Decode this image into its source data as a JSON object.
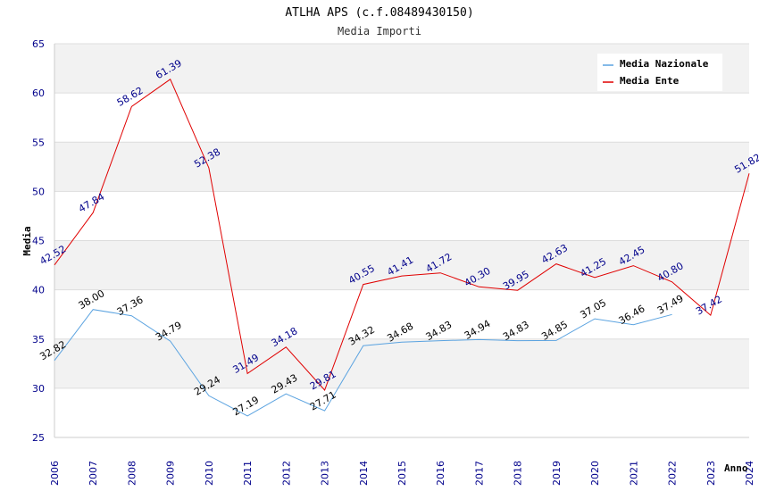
{
  "chart_data": {
    "type": "line",
    "title": "ATLHA APS (c.f.08489430150)",
    "subtitle": "Media Importi",
    "xlabel": "Anno",
    "ylabel": "Media",
    "ylim": [
      25,
      65
    ],
    "yticks": [
      "25",
      "30",
      "35",
      "40",
      "45",
      "50",
      "55",
      "60",
      "65"
    ],
    "categories": [
      "2006",
      "2007",
      "2008",
      "2009",
      "2010",
      "2011",
      "2012",
      "2013",
      "2014",
      "2015",
      "2016",
      "2017",
      "2018",
      "2019",
      "2020",
      "2021",
      "2022",
      "2023",
      "2024"
    ],
    "legend_position": "top-right",
    "series": [
      {
        "name": "Media Nazionale",
        "color": "#5ba3e0",
        "label_color": "#000000",
        "values": [
          32.82,
          38.0,
          37.36,
          34.79,
          29.24,
          27.19,
          29.43,
          27.71,
          34.32,
          34.68,
          34.83,
          34.94,
          34.83,
          34.85,
          37.05,
          36.46,
          37.49,
          null,
          null
        ],
        "labels": [
          "32.82",
          "38.00",
          "37.36",
          "34.79",
          "29.24",
          "27.19",
          "29.43",
          "27.71",
          "34.32",
          "34.68",
          "34.83",
          "34.94",
          "34.83",
          "34.85",
          "37.05",
          "36.46",
          "37.49",
          null,
          null
        ]
      },
      {
        "name": "Media Ente",
        "color": "#e00000",
        "label_color": "#00008b",
        "values": [
          42.52,
          47.84,
          58.62,
          61.39,
          52.38,
          31.49,
          34.18,
          29.81,
          40.55,
          41.41,
          41.72,
          40.3,
          39.95,
          42.63,
          41.25,
          42.45,
          40.8,
          37.42,
          51.82
        ],
        "labels": [
          "42.52",
          "47.84",
          "58.62",
          "61.39",
          "52.38",
          "31.49",
          "34.18",
          "29.81",
          "40.55",
          "41.41",
          "41.72",
          "40.30",
          "39.95",
          "42.63",
          "41.25",
          "42.45",
          "40.80",
          "37.42",
          "51.82"
        ]
      }
    ]
  }
}
